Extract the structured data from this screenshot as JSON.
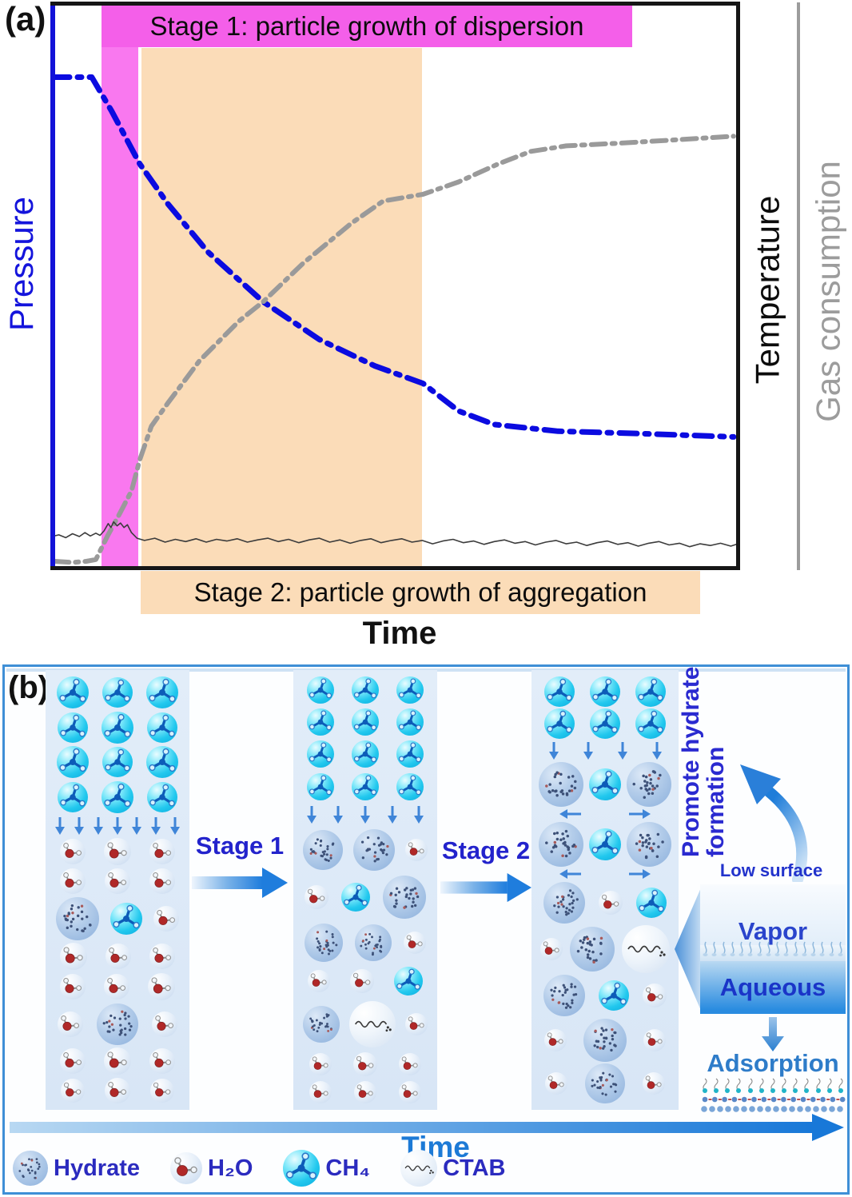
{
  "panel_a": {
    "label": "(a)",
    "stage1_title": "Stage 1: particle growth of dispersion",
    "stage2_title": "Stage 2: particle growth of aggregation",
    "xlabel": "Time",
    "ylabel_left": "Pressure",
    "ylabel_right_temperature": "Temperature",
    "ylabel_right_gas": "Gas consumption",
    "colors": {
      "pressure": "#0b0be0",
      "gas_consumption": "#9a9a9a",
      "temperature": "#3c3c3c",
      "stage1_band": "#f978ef",
      "stage1_title_bar": "#f45fe9",
      "stage2_region": "#fbdcb8",
      "left_axis": "#1212d8",
      "right_axis": "#9c9c9c"
    }
  },
  "chart_data": {
    "type": "line",
    "title": "",
    "xlabel": "Time",
    "ylabel_left": "Pressure",
    "ylabel_right": "Temperature / Gas consumption",
    "axes_note": "qualitative axes, no numeric ticks shown; coordinates normalized 0-1 (x: time, y: bottom to top of plot)",
    "annotations": {
      "stage1_region": {
        "x0": 0.072,
        "x1": 0.126,
        "color": "#f978ef",
        "label": "Stage 1: particle growth of dispersion"
      },
      "stage2_region": {
        "x0": 0.13,
        "x1": 0.539,
        "color": "#fbdcb8",
        "label": "Stage 2: particle growth of aggregation"
      }
    },
    "series": [
      {
        "name": "Pressure",
        "axis": "left",
        "style": "dash-dot",
        "color": "#0b0be0",
        "width": 7,
        "dash": "22 10 5 10",
        "points": [
          [
            0.0,
            0.87
          ],
          [
            0.058,
            0.87
          ],
          [
            0.087,
            0.81
          ],
          [
            0.128,
            0.716
          ],
          [
            0.169,
            0.645
          ],
          [
            0.227,
            0.56
          ],
          [
            0.308,
            0.471
          ],
          [
            0.39,
            0.404
          ],
          [
            0.471,
            0.357
          ],
          [
            0.541,
            0.326
          ],
          [
            0.593,
            0.277
          ],
          [
            0.645,
            0.253
          ],
          [
            0.738,
            0.241
          ],
          [
            0.855,
            0.237
          ],
          [
            0.994,
            0.231
          ]
        ]
      },
      {
        "name": "Gas consumption",
        "axis": "right",
        "style": "dash-dot",
        "color": "#9a9a9a",
        "width": 6,
        "dash": "18 8 4 8",
        "points": [
          [
            0.004,
            0.01
          ],
          [
            0.03,
            0.008
          ],
          [
            0.05,
            0.01
          ],
          [
            0.064,
            0.013
          ],
          [
            0.081,
            0.055
          ],
          [
            0.099,
            0.095
          ],
          [
            0.116,
            0.135
          ],
          [
            0.128,
            0.19
          ],
          [
            0.145,
            0.25
          ],
          [
            0.169,
            0.291
          ],
          [
            0.215,
            0.366
          ],
          [
            0.273,
            0.437
          ],
          [
            0.308,
            0.471
          ],
          [
            0.366,
            0.539
          ],
          [
            0.436,
            0.61
          ],
          [
            0.483,
            0.65
          ],
          [
            0.541,
            0.662
          ],
          [
            0.593,
            0.684
          ],
          [
            0.651,
            0.716
          ],
          [
            0.698,
            0.738
          ],
          [
            0.75,
            0.748
          ],
          [
            0.831,
            0.753
          ],
          [
            0.913,
            0.759
          ],
          [
            0.994,
            0.765
          ]
        ]
      },
      {
        "name": "Temperature",
        "axis": "right",
        "style": "solid",
        "color": "#3c3c3c",
        "width": 1.6,
        "dash": "",
        "points": [
          [
            0.0,
            0.054
          ],
          [
            0.01,
            0.057
          ],
          [
            0.02,
            0.052
          ],
          [
            0.03,
            0.059
          ],
          [
            0.04,
            0.054
          ],
          [
            0.048,
            0.061
          ],
          [
            0.056,
            0.055
          ],
          [
            0.064,
            0.06
          ],
          [
            0.07,
            0.056
          ],
          [
            0.076,
            0.064
          ],
          [
            0.082,
            0.077
          ],
          [
            0.086,
            0.07
          ],
          [
            0.09,
            0.08
          ],
          [
            0.095,
            0.073
          ],
          [
            0.1,
            0.078
          ],
          [
            0.105,
            0.07
          ],
          [
            0.11,
            0.075
          ],
          [
            0.116,
            0.061
          ],
          [
            0.124,
            0.051
          ],
          [
            0.135,
            0.047
          ],
          [
            0.15,
            0.051
          ],
          [
            0.165,
            0.044
          ],
          [
            0.18,
            0.049
          ],
          [
            0.195,
            0.045
          ],
          [
            0.21,
            0.05
          ],
          [
            0.225,
            0.044
          ],
          [
            0.24,
            0.049
          ],
          [
            0.255,
            0.046
          ],
          [
            0.27,
            0.05
          ],
          [
            0.285,
            0.044
          ],
          [
            0.3,
            0.048
          ],
          [
            0.315,
            0.051
          ],
          [
            0.33,
            0.045
          ],
          [
            0.345,
            0.049
          ],
          [
            0.36,
            0.043
          ],
          [
            0.375,
            0.048
          ],
          [
            0.39,
            0.051
          ],
          [
            0.405,
            0.044
          ],
          [
            0.42,
            0.048
          ],
          [
            0.435,
            0.042
          ],
          [
            0.45,
            0.047
          ],
          [
            0.465,
            0.05
          ],
          [
            0.48,
            0.043
          ],
          [
            0.495,
            0.047
          ],
          [
            0.51,
            0.05
          ],
          [
            0.525,
            0.044
          ],
          [
            0.54,
            0.047
          ],
          [
            0.555,
            0.041
          ],
          [
            0.57,
            0.046
          ],
          [
            0.585,
            0.049
          ],
          [
            0.6,
            0.043
          ],
          [
            0.615,
            0.046
          ],
          [
            0.63,
            0.04
          ],
          [
            0.645,
            0.045
          ],
          [
            0.66,
            0.048
          ],
          [
            0.675,
            0.042
          ],
          [
            0.69,
            0.045
          ],
          [
            0.705,
            0.039
          ],
          [
            0.72,
            0.044
          ],
          [
            0.735,
            0.047
          ],
          [
            0.75,
            0.041
          ],
          [
            0.765,
            0.044
          ],
          [
            0.78,
            0.038
          ],
          [
            0.795,
            0.043
          ],
          [
            0.81,
            0.046
          ],
          [
            0.825,
            0.04
          ],
          [
            0.84,
            0.043
          ],
          [
            0.855,
            0.037
          ],
          [
            0.87,
            0.042
          ],
          [
            0.885,
            0.045
          ],
          [
            0.9,
            0.039
          ],
          [
            0.915,
            0.042
          ],
          [
            0.93,
            0.036
          ],
          [
            0.945,
            0.041
          ],
          [
            0.96,
            0.038
          ],
          [
            0.975,
            0.042
          ],
          [
            0.99,
            0.037
          ],
          [
            0.998,
            0.04
          ]
        ]
      }
    ]
  },
  "panel_b": {
    "label": "(b)",
    "stage1_arrow_label": "Stage 1",
    "stage2_arrow_label": "Stage 2",
    "promote_line1": "Promote hydrate",
    "promote_line2": "formation",
    "low_surface_tension": "Low surface tension",
    "vapor": "Vapor",
    "aqueous": "Aqueous",
    "adsorption": "Adsorption",
    "time_label": "Time",
    "colors": {
      "panel_border": "#3f8fd6",
      "column_bg": "#dce9f7",
      "stage_text": "#2323cc",
      "time_text": "#1d7ad6",
      "legend_text": "#2b2bbf",
      "arrow_blue": "#1f7ddd"
    },
    "columns": [
      {
        "rows": [
          {
            "bubbles": [
              [
                "M",
                40
              ],
              [
                "M",
                38
              ],
              [
                "M",
                40
              ]
            ]
          },
          {
            "bubbles": [
              [
                "M",
                38
              ],
              [
                "M",
                40
              ],
              [
                "M",
                38
              ]
            ]
          },
          {
            "bubbles": [
              [
                "M",
                40
              ],
              [
                "M",
                38
              ],
              [
                "M",
                40
              ]
            ]
          },
          {
            "bubbles": [
              [
                "M",
                38
              ],
              [
                "M",
                40
              ],
              [
                "M",
                38
              ]
            ]
          },
          {
            "arrows_down": 7
          },
          {
            "bubbles": [
              [
                "W",
                32
              ],
              [
                "W",
                34
              ],
              [
                "W",
                32
              ]
            ]
          },
          {
            "bubbles": [
              [
                "W",
                32
              ],
              [
                "W",
                32
              ],
              [
                "W",
                32
              ]
            ]
          },
          {
            "bubbles": [
              [
                "H",
                54
              ],
              [
                "M",
                40
              ],
              [
                "W",
                32
              ]
            ]
          },
          {
            "bubbles": [
              [
                "W",
                34
              ],
              [
                "W",
                32
              ],
              [
                "W",
                32
              ]
            ]
          },
          {
            "bubbles": [
              [
                "W",
                32
              ],
              [
                "W",
                32
              ],
              [
                "W",
                34
              ]
            ]
          },
          {
            "bubbles": [
              [
                "W",
                32
              ],
              [
                "H",
                52
              ],
              [
                "W",
                32
              ]
            ]
          },
          {
            "bubbles": [
              [
                "W",
                32
              ],
              [
                "W",
                34
              ],
              [
                "W",
                32
              ]
            ]
          },
          {
            "bubbles": [
              [
                "W",
                30
              ],
              [
                "W",
                32
              ],
              [
                "W",
                30
              ]
            ]
          }
        ]
      },
      {
        "rows": [
          {
            "bubbles": [
              [
                "M",
                34
              ],
              [
                "M",
                34
              ],
              [
                "M",
                34
              ]
            ]
          },
          {
            "bubbles": [
              [
                "M",
                34
              ],
              [
                "M",
                34
              ],
              [
                "M",
                34
              ]
            ]
          },
          {
            "bubbles": [
              [
                "M",
                34
              ],
              [
                "M",
                34
              ],
              [
                "M",
                34
              ]
            ]
          },
          {
            "bubbles": [
              [
                "M",
                34
              ],
              [
                "M",
                34
              ],
              [
                "M",
                34
              ]
            ]
          },
          {
            "arrows_down": 5
          },
          {
            "bubbles": [
              [
                "H",
                50
              ],
              [
                "H",
                52
              ],
              [
                "W",
                28
              ]
            ]
          },
          {
            "bubbles": [
              [
                "W",
                30
              ],
              [
                "M",
                36
              ],
              [
                "H",
                54
              ]
            ]
          },
          {
            "bubbles": [
              [
                "H",
                48
              ],
              [
                "H",
                46
              ],
              [
                "W",
                28
              ]
            ]
          },
          {
            "bubbles": [
              [
                "W",
                28
              ],
              [
                "W",
                30
              ],
              [
                "M",
                36
              ]
            ]
          },
          {
            "bubbles": [
              [
                "H",
                46
              ],
              [
                "C",
                58
              ],
              [
                "W",
                28
              ]
            ]
          },
          {
            "bubbles": [
              [
                "W",
                28
              ],
              [
                "W",
                30
              ],
              [
                "W",
                28
              ]
            ]
          },
          {
            "bubbles": [
              [
                "W",
                28
              ],
              [
                "W",
                28
              ],
              [
                "W",
                28
              ]
            ]
          }
        ]
      },
      {
        "rows": [
          {
            "bubbles": [
              [
                "M",
                38
              ],
              [
                "M",
                38
              ],
              [
                "M",
                38
              ]
            ]
          },
          {
            "bubbles": [
              [
                "M",
                38
              ],
              [
                "M",
                38
              ],
              [
                "M",
                38
              ]
            ]
          },
          {
            "arrows_down": 4
          },
          {
            "bubbles": [
              [
                "H",
                56
              ],
              [
                "M",
                40
              ],
              [
                "H",
                56
              ]
            ]
          },
          {
            "arrows_lr": true
          },
          {
            "bubbles": [
              [
                "H",
                56
              ],
              [
                "M",
                40
              ],
              [
                "H",
                56
              ]
            ]
          },
          {
            "arrows_lr": true
          },
          {
            "bubbles": [
              [
                "H",
                52
              ],
              [
                "W",
                30
              ],
              [
                "M",
                38
              ]
            ]
          },
          {
            "bubbles": [
              [
                "W",
                28
              ],
              [
                "H",
                56
              ],
              [
                "C",
                60
              ]
            ]
          },
          {
            "bubbles": [
              [
                "H",
                52
              ],
              [
                "M",
                38
              ],
              [
                "W",
                30
              ]
            ]
          },
          {
            "bubbles": [
              [
                "W",
                28
              ],
              [
                "H",
                54
              ],
              [
                "W",
                28
              ]
            ]
          },
          {
            "bubbles": [
              [
                "W",
                28
              ],
              [
                "H",
                50
              ],
              [
                "W",
                28
              ]
            ]
          }
        ]
      }
    ],
    "legend": [
      {
        "icon": "hydrate-icon",
        "type": "H",
        "size": 44,
        "label": "Hydrate"
      },
      {
        "icon": "water-icon",
        "type": "W",
        "size": 40,
        "label": "H₂O"
      },
      {
        "icon": "methane-icon",
        "type": "M",
        "size": 46,
        "label": "CH₄"
      },
      {
        "icon": "ctab-icon",
        "type": "C",
        "size": 46,
        "label": "CTAB"
      }
    ]
  }
}
